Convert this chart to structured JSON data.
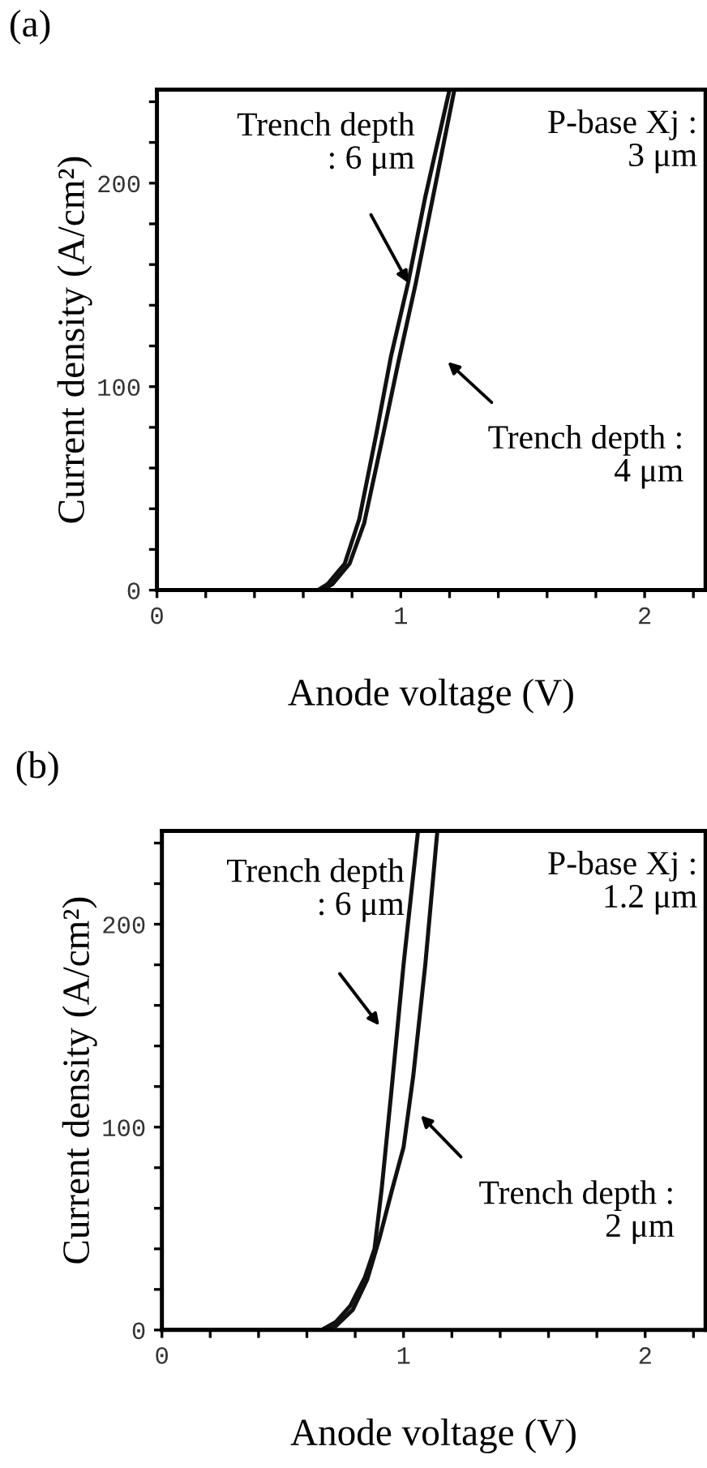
{
  "chart_data": [
    {
      "type": "line",
      "title": "(a)",
      "xlabel": "Anode voltage (V)",
      "ylabel": "Current density (A/cm²)",
      "xlim": [
        0,
        2.25
      ],
      "ylim": [
        0,
        246
      ],
      "xticks": [
        0,
        {
          "value": 0.2,
          "label": null
        },
        {
          "value": 0.4,
          "label": null
        },
        {
          "value": 0.6,
          "label": null
        },
        {
          "value": 0.8,
          "label": null
        },
        1,
        {
          "value": 1.2,
          "label": null
        },
        {
          "value": 1.4,
          "label": null
        },
        {
          "value": 1.6,
          "label": null
        },
        {
          "value": 1.8,
          "label": null
        },
        2,
        {
          "value": 2.2,
          "label": null
        }
      ],
      "yticks": [
        0,
        {
          "value": 20,
          "label": null
        },
        {
          "value": 40,
          "label": null
        },
        {
          "value": 60,
          "label": null
        },
        {
          "value": 80,
          "label": null
        },
        100,
        {
          "value": 120,
          "label": null
        },
        {
          "value": 140,
          "label": null
        },
        {
          "value": 160,
          "label": null
        },
        {
          "value": 180,
          "label": null
        },
        200,
        {
          "value": 220,
          "label": null
        },
        {
          "value": 240,
          "label": null
        }
      ],
      "grid": false,
      "legend": false,
      "marker": "none",
      "line_style": "solid",
      "series": [
        {
          "color": "#111111",
          "x": [
            0,
            0.6,
            0.66,
            0.7,
            0.77,
            0.83,
            0.9,
            0.96,
            1.03,
            1.1,
            1.2
          ],
          "values": [
            0,
            0,
            0,
            3,
            13,
            35,
            77,
            115,
            151,
            193,
            246
          ]
        },
        {
          "color": "#111111",
          "x": [
            0,
            0.6,
            0.68,
            0.72,
            0.79,
            0.85,
            0.92,
            0.99,
            1.06,
            1.13,
            1.22
          ],
          "values": [
            0,
            0,
            0,
            3,
            13,
            33,
            72,
            112,
            150,
            192,
            246
          ]
        }
      ],
      "annotations": [
        {
          "text": "Trench depth\n: 6 μm",
          "x": 1.03,
          "y": 151
        },
        "Trench depth :\n4 μm",
        "P-base Xj :\n3 μm"
      ]
    },
    {
      "type": "line",
      "title": "(b)",
      "xlabel": "Anode voltage (V)",
      "ylabel": "Current density (A/cm²)",
      "xlim": [
        0,
        2.25
      ],
      "ylim": [
        0,
        246
      ],
      "xticks": [
        0,
        {
          "value": 0.2,
          "label": null
        },
        {
          "value": 0.4,
          "label": null
        },
        {
          "value": 0.6,
          "label": null
        },
        {
          "value": 0.8,
          "label": null
        },
        1,
        {
          "value": 1.2,
          "label": null
        },
        {
          "value": 1.4,
          "label": null
        },
        {
          "value": 1.6,
          "label": null
        },
        {
          "value": 1.8,
          "label": null
        },
        2,
        {
          "value": 2.2,
          "label": null
        }
      ],
      "yticks": [
        0,
        {
          "value": 20,
          "label": null
        },
        {
          "value": 40,
          "label": null
        },
        {
          "value": 60,
          "label": null
        },
        {
          "value": 80,
          "label": null
        },
        100,
        {
          "value": 120,
          "label": null
        },
        {
          "value": 140,
          "label": null
        },
        {
          "value": 160,
          "label": null
        },
        {
          "value": 180,
          "label": null
        },
        200,
        {
          "value": 220,
          "label": null
        },
        {
          "value": 240,
          "label": null
        }
      ],
      "grid": false,
      "legend": false,
      "marker": "none",
      "line_style": "solid",
      "series": [
        {
          "color": "#111111",
          "x": [
            0,
            0.6,
            0.66,
            0.72,
            0.78,
            0.84,
            0.88,
            0.91,
            0.95,
            1.0,
            1.06
          ],
          "values": [
            0,
            0,
            0,
            4,
            12,
            26,
            40,
            70,
            118,
            180,
            246
          ]
        },
        {
          "color": "#111111",
          "x": [
            0,
            0.6,
            0.66,
            0.72,
            0.79,
            0.85,
            0.9,
            0.95,
            1.0,
            1.04,
            1.09,
            1.14
          ],
          "values": [
            0,
            0,
            0,
            2,
            10,
            25,
            45,
            68,
            90,
            125,
            180,
            246
          ]
        }
      ],
      "annotations": [
        "Trench depth\n: 6 μm",
        "Trench depth :\n2 μm",
        "P-base Xj :\n1.2 μm"
      ]
    }
  ]
}
